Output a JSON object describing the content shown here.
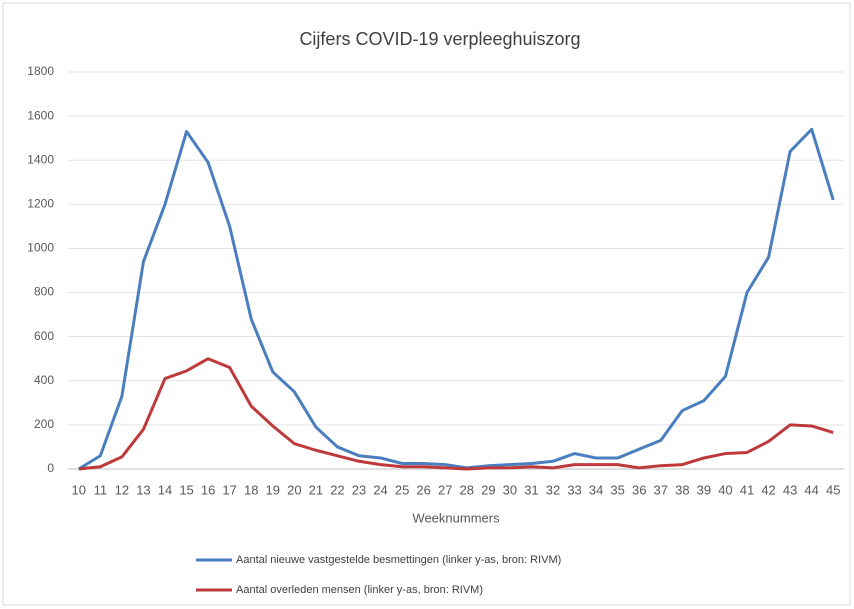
{
  "chart_data": {
    "type": "line",
    "title": "Cijfers COVID-19 verpleeghuiszorg",
    "x_label": "Weeknummers",
    "categories": [
      "10",
      "11",
      "12",
      "13",
      "14",
      "15",
      "16",
      "17",
      "18",
      "19",
      "20",
      "21",
      "22",
      "23",
      "24",
      "25",
      "26",
      "27",
      "28",
      "29",
      "30",
      "31",
      "32",
      "33",
      "34",
      "35",
      "36",
      "37",
      "38",
      "39",
      "40",
      "41",
      "42",
      "43",
      "44",
      "45"
    ],
    "series": [
      {
        "name": "Aantal nieuwe vastgestelde besmettingen  (linker y-as, bron: RIVM)",
        "color": "#4a7ebf",
        "values": [
          0,
          60,
          330,
          940,
          1200,
          1530,
          1390,
          1100,
          680,
          440,
          350,
          190,
          100,
          60,
          50,
          25,
          25,
          20,
          5,
          15,
          20,
          25,
          35,
          70,
          50,
          50,
          90,
          130,
          265,
          310,
          420,
          800,
          960,
          1440,
          1540,
          1220
        ]
      },
      {
        "name": "Aantal overleden mensen  (linker y-as, bron: RIVM)",
        "color": "#be3a3a",
        "values": [
          0,
          10,
          55,
          180,
          410,
          445,
          500,
          460,
          285,
          195,
          115,
          85,
          60,
          35,
          20,
          10,
          10,
          5,
          0,
          5,
          5,
          10,
          5,
          20,
          20,
          20,
          5,
          15,
          20,
          50,
          70,
          75,
          125,
          200,
          195,
          165
        ]
      }
    ],
    "ylim": [
      0,
      1800
    ],
    "yticks": [
      0,
      200,
      400,
      600,
      800,
      1000,
      1200,
      1400,
      1600,
      1800
    ],
    "grid": true
  }
}
